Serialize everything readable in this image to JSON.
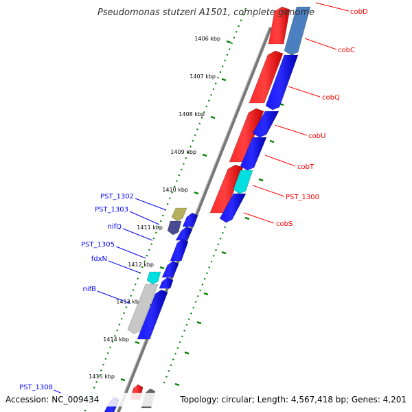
{
  "title": "Pseudomonas stutzeri A1501, complete genome",
  "footer": {
    "accession": "Accession: NC_009434",
    "topology": "Topology: circular; Length: 4,567,418 bp; Genes: 4,201"
  },
  "ticks": [
    "1406 kbp",
    "1407 kbp",
    "1408 kbp",
    "1409 kbp",
    "1410 kbp",
    "1411 kbp",
    "1412 kbp",
    "1413 kbp",
    "1414 kbp",
    "1415 kbp"
  ],
  "labels_right": [
    "cobD",
    "cobC",
    "cobQ",
    "cobU",
    "cobT",
    "PST_1300",
    "cobS"
  ],
  "labels_left": [
    "PST_1302",
    "PST_1303",
    "nifQ",
    "PST_1305",
    "fdxN",
    "nifB",
    "PST_1308"
  ],
  "colors": {
    "forward": "#ff0000",
    "reverse": "#0000ff",
    "tick": "#008000",
    "backbone": "#808080",
    "cyan": "#00e0e0",
    "khaki": "#b5b060",
    "slate": "#4a4a90",
    "steelblue": "#4a80c0",
    "lightgray": "#c8c8c8"
  }
}
